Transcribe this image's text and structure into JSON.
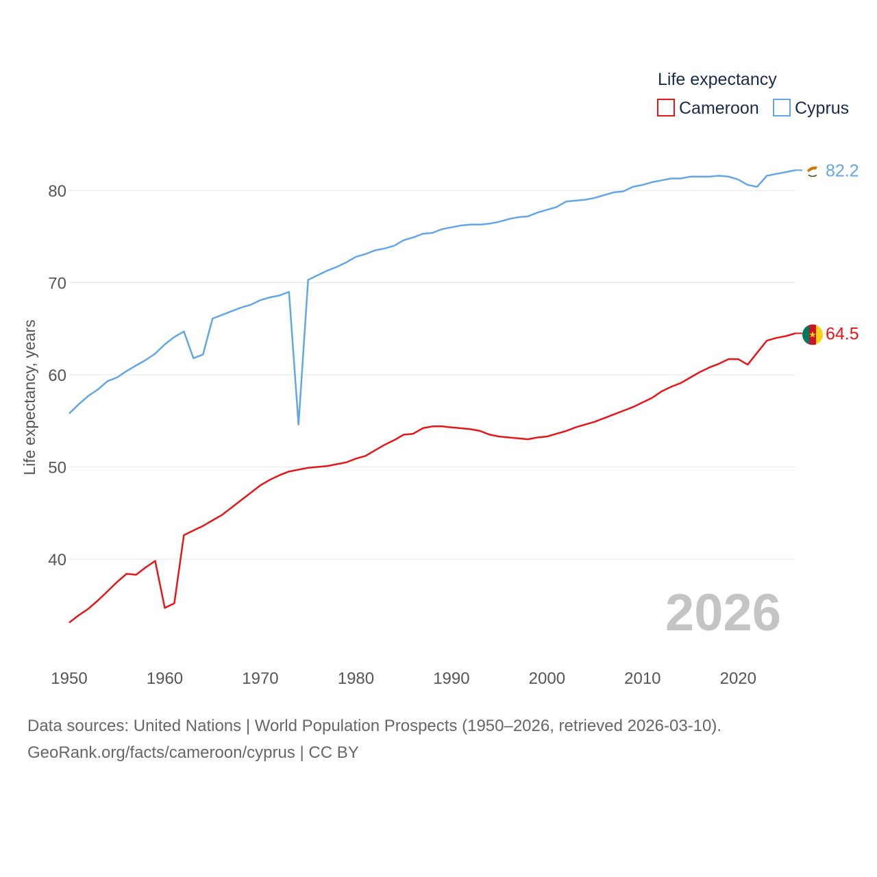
{
  "colors": {
    "cameroon": "#e81416",
    "cyprus": "#62a6e6",
    "grid": "#e6e6e6",
    "axis_text": "#555555",
    "watermark": "#c4c4c4"
  },
  "chart_data": {
    "type": "line",
    "title": "",
    "xlabel": "",
    "ylabel": "Life expectancy, years",
    "xlim": [
      1950,
      2026
    ],
    "ylim": [
      31.5,
      85
    ],
    "x_ticks": [
      1950,
      1960,
      1970,
      1980,
      1990,
      2000,
      2010,
      2020
    ],
    "y_ticks": [
      40,
      50,
      60,
      70,
      80
    ],
    "grid": true,
    "legend": {
      "title": "Life expectancy",
      "placement": "top-right"
    },
    "watermark_year": "2026",
    "x": [
      1950,
      1951,
      1952,
      1953,
      1954,
      1955,
      1956,
      1957,
      1958,
      1959,
      1960,
      1961,
      1962,
      1963,
      1964,
      1965,
      1966,
      1967,
      1968,
      1969,
      1970,
      1971,
      1972,
      1973,
      1974,
      1975,
      1976,
      1977,
      1978,
      1979,
      1980,
      1981,
      1982,
      1983,
      1984,
      1985,
      1986,
      1987,
      1988,
      1989,
      1990,
      1991,
      1992,
      1993,
      1994,
      1995,
      1996,
      1997,
      1998,
      1999,
      2000,
      2001,
      2002,
      2003,
      2004,
      2005,
      2006,
      2007,
      2008,
      2009,
      2010,
      2011,
      2012,
      2013,
      2014,
      2015,
      2016,
      2017,
      2018,
      2019,
      2020,
      2021,
      2022,
      2023,
      2024,
      2025,
      2026
    ],
    "series": [
      {
        "name": "Cameroon",
        "color": "#e81416",
        "end_label": "64.5",
        "flag": "cameroon-flag",
        "values": [
          33.1,
          33.9,
          34.6,
          35.5,
          36.5,
          37.5,
          38.4,
          38.3,
          39.1,
          39.8,
          34.7,
          35.2,
          42.6,
          43.1,
          43.6,
          44.2,
          44.8,
          45.6,
          46.4,
          47.2,
          48.0,
          48.6,
          49.1,
          49.5,
          49.7,
          49.9,
          50.0,
          50.1,
          50.3,
          50.5,
          50.9,
          51.2,
          51.8,
          52.4,
          52.9,
          53.5,
          53.6,
          54.2,
          54.4,
          54.4,
          54.3,
          54.2,
          54.1,
          53.9,
          53.5,
          53.3,
          53.2,
          53.1,
          53.0,
          53.2,
          53.3,
          53.6,
          53.9,
          54.3,
          54.6,
          54.9,
          55.3,
          55.7,
          56.1,
          56.5,
          57.0,
          57.5,
          58.2,
          58.7,
          59.1,
          59.7,
          60.3,
          60.8,
          61.2,
          61.7,
          61.7,
          61.1,
          62.4,
          63.7,
          64.0,
          64.2,
          64.5
        ]
      },
      {
        "name": "Cyprus",
        "color": "#62a6e6",
        "end_label": "82.2",
        "flag": "cyprus-flag",
        "values": [
          55.8,
          56.8,
          57.7,
          58.4,
          59.3,
          59.7,
          60.4,
          61.0,
          61.6,
          62.3,
          63.3,
          64.1,
          64.7,
          61.8,
          62.2,
          66.1,
          66.5,
          66.9,
          67.3,
          67.6,
          68.1,
          68.4,
          68.6,
          69.0,
          54.6,
          70.3,
          70.8,
          71.3,
          71.7,
          72.2,
          72.8,
          73.1,
          73.5,
          73.7,
          74.0,
          74.6,
          74.9,
          75.3,
          75.4,
          75.8,
          76.0,
          76.2,
          76.3,
          76.3,
          76.4,
          76.6,
          76.9,
          77.1,
          77.2,
          77.6,
          77.9,
          78.2,
          78.8,
          78.9,
          79.0,
          79.2,
          79.5,
          79.8,
          79.9,
          80.4,
          80.6,
          80.9,
          81.1,
          81.3,
          81.3,
          81.5,
          81.5,
          81.5,
          81.6,
          81.5,
          81.2,
          80.6,
          80.4,
          81.6,
          81.8,
          82.0,
          82.2
        ]
      }
    ]
  },
  "footer": {
    "line1": "Data sources: United Nations | World Population Prospects (1950–2026, retrieved 2026-03-10).",
    "line2": "GeoRank.org/facts/cameroon/cyprus | CC BY"
  }
}
